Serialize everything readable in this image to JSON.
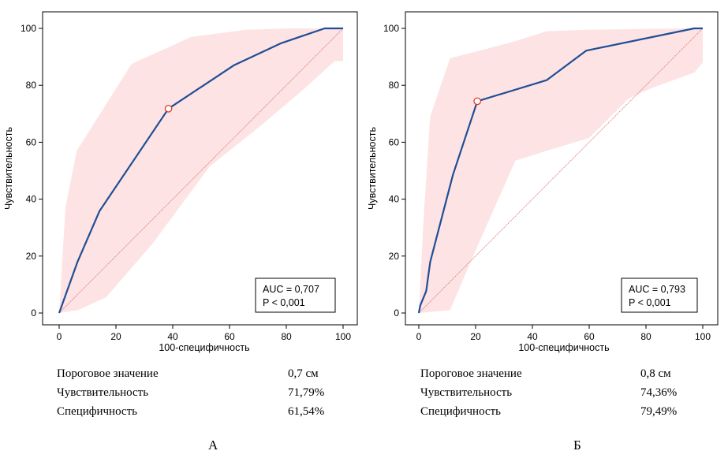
{
  "colors": {
    "roc_line": "#1f4e96",
    "ci_band": "#fde3e3",
    "diagonal": "#d98080",
    "cutoff_marker_stroke": "#e03a2a",
    "axis": "#000000"
  },
  "chart_data": [
    {
      "type": "line",
      "panel_label": "А",
      "xlabel": "100-специфичность",
      "ylabel": "Чувствительность",
      "xlim": [
        0,
        100
      ],
      "ylim": [
        0,
        100
      ],
      "xticks": [
        0,
        20,
        40,
        60,
        80,
        100
      ],
      "yticks": [
        0,
        20,
        40,
        60,
        80,
        100
      ],
      "grid": false,
      "diagonal_reference": true,
      "roc": {
        "x": [
          0,
          6.4,
          14.2,
          38.5,
          61.5,
          78.2,
          93.5,
          100
        ],
        "y": [
          0,
          17.8,
          35.8,
          71.8,
          87.0,
          94.8,
          100,
          100
        ]
      },
      "ci_upper": {
        "x": [
          0,
          2.2,
          6.2,
          25.5,
          46.5,
          66.0,
          82.0,
          100
        ],
        "y": [
          0,
          37.0,
          57.0,
          87.5,
          97.0,
          99.5,
          100,
          100
        ]
      },
      "ci_lower": {
        "x": [
          0,
          6.5,
          16.5,
          33.0,
          53.0,
          70.0,
          86.0,
          97.0,
          100
        ],
        "y": [
          0,
          1.0,
          5.5,
          24.5,
          51.5,
          65.0,
          78.5,
          88.5,
          88.5
        ]
      },
      "cutoff_point": {
        "x": 38.5,
        "y": 71.8
      },
      "annotation": {
        "auc": "AUC = 0,707",
        "p": "P < 0,001"
      },
      "stats": [
        {
          "label": "Пороговое значение",
          "value": "0,7 см"
        },
        {
          "label": "Чувствительность",
          "value": "71,79%"
        },
        {
          "label": "Специфичность",
          "value": "61,54%"
        }
      ]
    },
    {
      "type": "line",
      "panel_label": "Б",
      "xlabel": "100-специфичность",
      "ylabel": "Чувствительность",
      "xlim": [
        0,
        100
      ],
      "ylim": [
        0,
        100
      ],
      "xticks": [
        0,
        20,
        40,
        60,
        80,
        100
      ],
      "yticks": [
        0,
        20,
        40,
        60,
        80,
        100
      ],
      "grid": false,
      "diagonal_reference": true,
      "roc": {
        "x": [
          0,
          0.5,
          2.6,
          4.0,
          12.0,
          20.6,
          45.0,
          59.0,
          97.0,
          100
        ],
        "y": [
          0,
          2.6,
          7.7,
          17.9,
          48.5,
          74.4,
          81.8,
          92.2,
          100,
          100
        ]
      },
      "ci_upper": {
        "x": [
          0,
          1.5,
          4.0,
          11.0,
          20.0,
          34.0,
          45.0,
          59.0,
          97.0,
          100
        ],
        "y": [
          0,
          30.0,
          69.0,
          89.5,
          91.8,
          95.5,
          99.0,
          99.5,
          100,
          100
        ]
      },
      "ci_lower": {
        "x": [
          0,
          11.0,
          20.0,
          34.0,
          45.0,
          60.0,
          74.0,
          82.0,
          97.0,
          100
        ],
        "y": [
          0,
          1.0,
          22.0,
          53.5,
          57.0,
          61.5,
          75.5,
          79.0,
          84.5,
          88.0
        ]
      },
      "cutoff_point": {
        "x": 20.6,
        "y": 74.4
      },
      "annotation": {
        "auc": "AUC = 0,793",
        "p": "P < 0,001"
      },
      "stats": [
        {
          "label": "Пороговое значение",
          "value": "0,8 см"
        },
        {
          "label": "Чувствительность",
          "value": "74,36%"
        },
        {
          "label": "Специфичность",
          "value": "79,49%"
        }
      ]
    }
  ]
}
